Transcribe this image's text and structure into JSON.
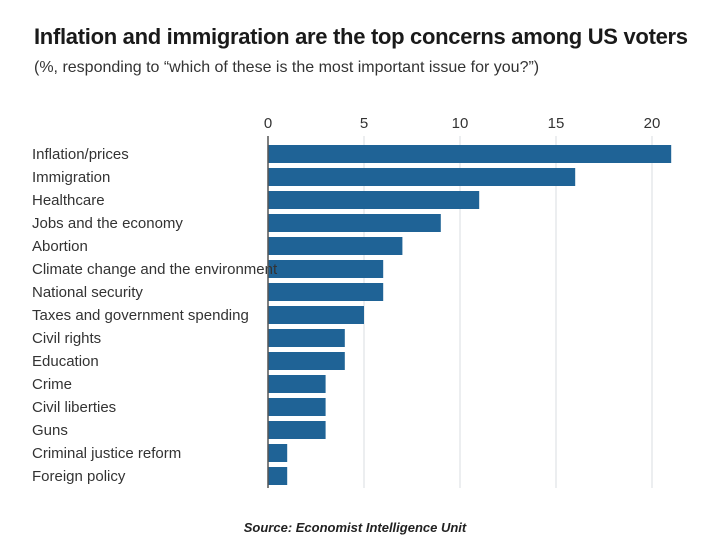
{
  "title": "Inflation and immigration are the top concerns among US voters",
  "subtitle": "(%, responding to “which of these is the most important issue for you?”)",
  "source": "Source: Economist Intelligence Unit",
  "colors": {
    "bar": "#1f6396",
    "grid": "#d8dde1",
    "axis": "#555555",
    "text": "#333333"
  },
  "chart_data": {
    "type": "bar",
    "orientation": "horizontal",
    "categories": [
      "Inflation/prices",
      "Immigration",
      "Healthcare",
      "Jobs and the economy",
      "Abortion",
      "Climate change and the environment",
      "National security",
      "Taxes and government spending",
      "Civil rights",
      "Education",
      "Crime",
      "Civil liberties",
      "Guns",
      "Criminal justice reform",
      "Foreign policy"
    ],
    "values": [
      21,
      16,
      11,
      9,
      7,
      6,
      6,
      5,
      4,
      4,
      3,
      3,
      3,
      1,
      1
    ],
    "xticks": [
      0,
      5,
      10,
      15,
      20
    ],
    "xlim": [
      0,
      21
    ],
    "grid": true,
    "tick_position": "top"
  }
}
